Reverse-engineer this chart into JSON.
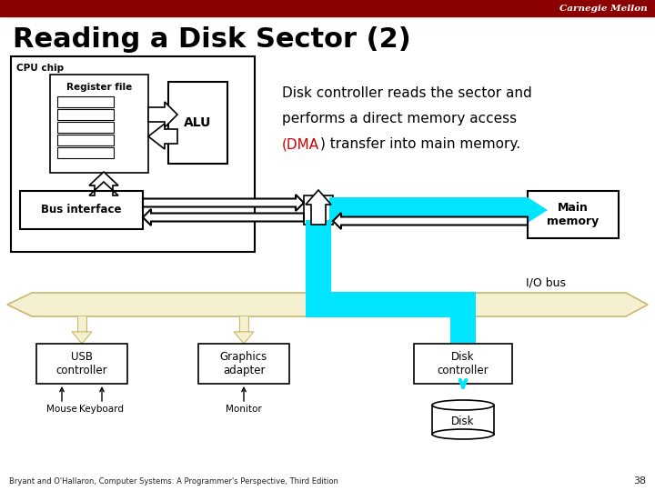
{
  "title": "Reading a Disk Sector (2)",
  "carnegie_mellon_text": "Carnegie Mellon",
  "header_bg": "#8B0000",
  "slide_bg": "#ffffff",
  "title_color": "#000000",
  "title_fontsize": 22,
  "cpu_chip_label": "CPU chip",
  "register_file_label": "Register file",
  "alu_label": "ALU",
  "bus_interface_label": "Bus interface",
  "main_memory_label": "Main\nmemory",
  "io_bus_label": "I/O bus",
  "usb_label": "USB\ncontroller",
  "graphics_label": "Graphics\nadapter",
  "disk_ctrl_label": "Disk\ncontroller",
  "mouse_label": "Mouse",
  "keyboard_label": "Keyboard",
  "monitor_label": "Monitor",
  "disk_label": "Disk",
  "description_line1": "Disk controller reads the sector and",
  "description_line2": "performs a direct memory access",
  "description_line3": ") transfer into main memory.",
  "dma_text": "(DMA",
  "footer_text": "Bryant and O'Hallaron, Computer Systems: A Programmer's Perspective, Third Edition",
  "page_number": "38",
  "cyan_color": "#00E5FF",
  "beige_color": "#F5F0D0",
  "beige_outline": "#C8B870",
  "box_outline": "#000000",
  "arrow_color": "#000000",
  "dma_color": "#CC0000"
}
